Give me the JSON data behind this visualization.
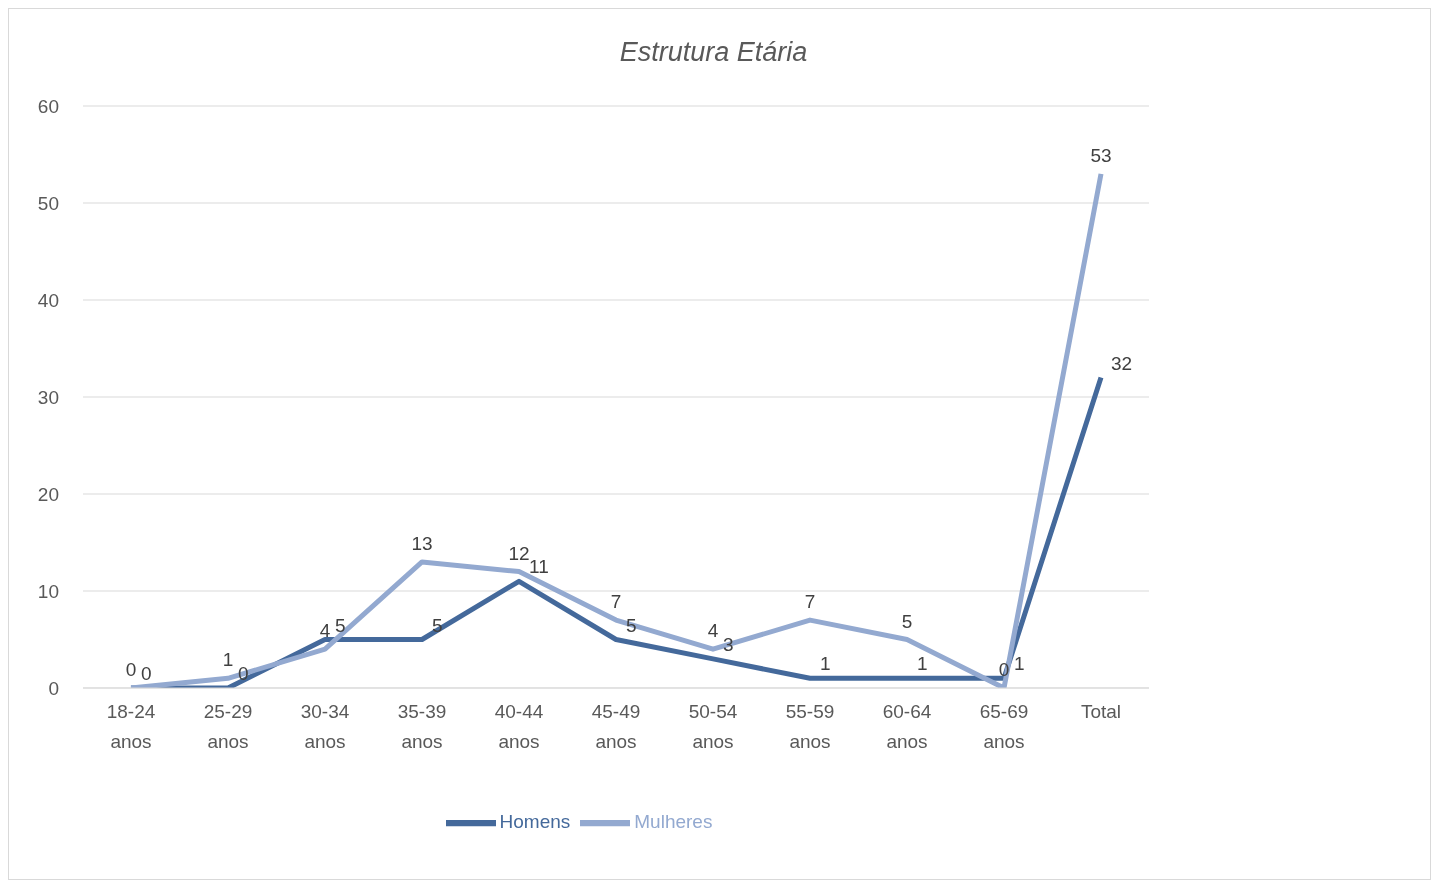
{
  "chart_data": {
    "type": "line",
    "title": "Estrutura Etária",
    "categories": [
      "18-24 anos",
      "25-29 anos",
      "30-34 anos",
      "35-39 anos",
      "40-44 anos",
      "45-49 anos",
      "50-54 anos",
      "55-59 anos",
      "60-64 anos",
      "65-69 anos",
      "Total"
    ],
    "series": [
      {
        "name": "Homens",
        "color": "#44699b",
        "values": [
          0,
          0,
          5,
          5,
          11,
          5,
          3,
          1,
          1,
          1,
          32
        ]
      },
      {
        "name": "Mulheres",
        "color": "#93a9d0",
        "values": [
          0,
          1,
          4,
          13,
          12,
          7,
          4,
          7,
          5,
          0,
          53
        ]
      }
    ],
    "ylim": [
      0,
      60
    ],
    "yticks": [
      0,
      10,
      20,
      30,
      40,
      50,
      60
    ],
    "grid": "y",
    "legend": "bottom",
    "marker": "none",
    "line_style": "solid",
    "data_labels": true
  }
}
